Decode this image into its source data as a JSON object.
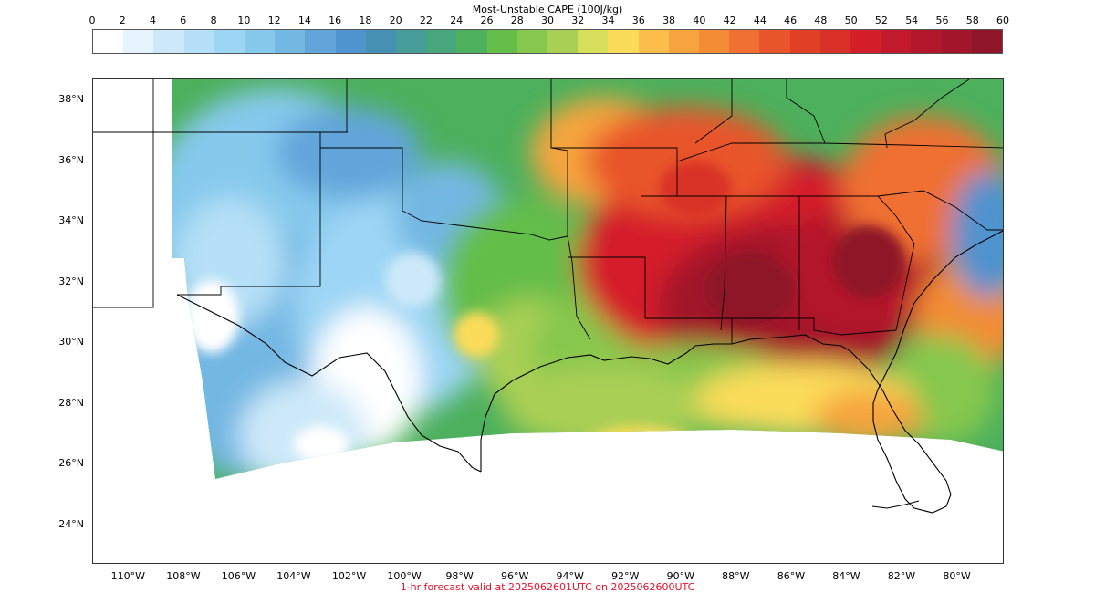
{
  "colorbar": {
    "title": "Most-Unstable CAPE (100J/kg)",
    "ticks": [
      "0",
      "2",
      "4",
      "6",
      "8",
      "10",
      "12",
      "14",
      "16",
      "18",
      "20",
      "22",
      "24",
      "26",
      "28",
      "30",
      "32",
      "34",
      "36",
      "38",
      "40",
      "42",
      "44",
      "46",
      "48",
      "50",
      "52",
      "54",
      "56",
      "58",
      "60"
    ],
    "colors": [
      "#ffffff",
      "#e6f4fd",
      "#cde9f9",
      "#b5e0f7",
      "#9dd6f5",
      "#86c9ed",
      "#73b7e3",
      "#62a5da",
      "#4f93cf",
      "#4691b3",
      "#479d99",
      "#48a67c",
      "#4cb05c",
      "#64be49",
      "#86c74e",
      "#aacf55",
      "#d8e05b",
      "#fbdc5a",
      "#fbbd4b",
      "#f6a43e",
      "#f38c34",
      "#ef7030",
      "#e9552b",
      "#e14027",
      "#d93127",
      "#d41f2a",
      "#c3192c",
      "#b3172b",
      "#a2152a",
      "#8f1528"
    ]
  },
  "map": {
    "lat_labels": [
      "38°N",
      "36°N",
      "34°N",
      "32°N",
      "30°N",
      "28°N",
      "26°N",
      "24°N"
    ],
    "lon_labels": [
      "110°W",
      "108°W",
      "106°W",
      "104°W",
      "102°W",
      "100°W",
      "98°W",
      "96°W",
      "94°W",
      "92°W",
      "90°W",
      "88°W",
      "86°W",
      "84°W",
      "82°W",
      "80°W"
    ],
    "lat_values": [
      38,
      36,
      34,
      32,
      30,
      28,
      26,
      24
    ],
    "lon_values": [
      -110,
      -108,
      -106,
      -104,
      -102,
      -100,
      -98,
      -96,
      -94,
      -92,
      -90,
      -88,
      -86,
      -84,
      -82,
      -80
    ],
    "extent": {
      "lon_min": -111.3,
      "lon_max": -78.3,
      "lat_min": 22.7,
      "lat_max": 38.7
    }
  },
  "footer": {
    "text": "1-hr forecast valid at 2025062601UTC on 2025062600UTC"
  }
}
